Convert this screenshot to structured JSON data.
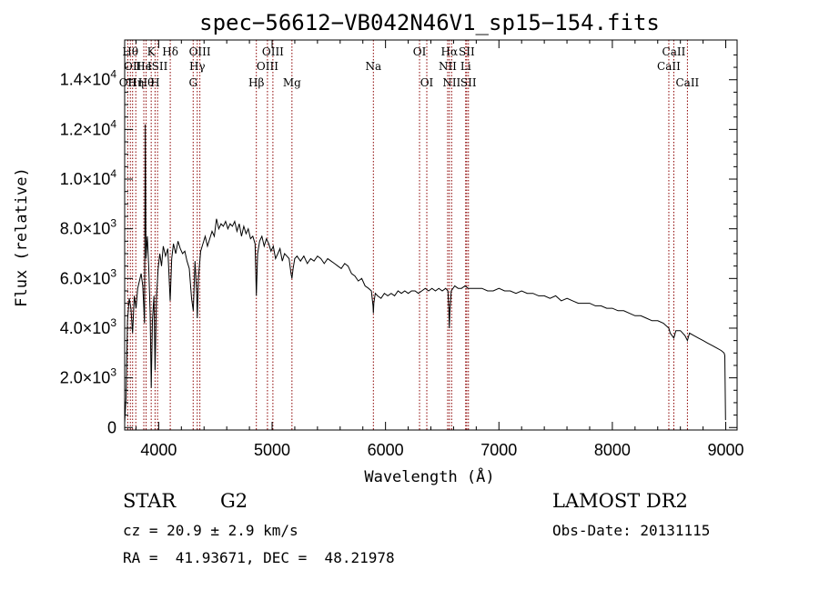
{
  "chart_data": {
    "type": "line",
    "title": "spec−56612−VB042N46V1_sp15−154.fits",
    "xlabel": "Wavelength (Å)",
    "ylabel": "Flux (relative)",
    "xlim": [
      3700,
      9100
    ],
    "ylim": [
      -100,
      15600
    ],
    "x_ticks": [
      4000,
      5000,
      6000,
      7000,
      8000,
      9000
    ],
    "y_ticks": [
      {
        "value": 0,
        "mant": "0",
        "exp": ""
      },
      {
        "value": 2000,
        "mant": "2.0×10",
        "exp": "3"
      },
      {
        "value": 4000,
        "mant": "4.0×10",
        "exp": "3"
      },
      {
        "value": 6000,
        "mant": "6.0×10",
        "exp": "3"
      },
      {
        "value": 8000,
        "mant": "8.0×10",
        "exp": "3"
      },
      {
        "value": 10000,
        "mant": "1.0×10",
        "exp": "4"
      },
      {
        "value": 12000,
        "mant": "1.2×10",
        "exp": "4"
      },
      {
        "value": 14000,
        "mant": "1.4×10",
        "exp": "4"
      }
    ],
    "line_color": "#000000",
    "marker_color": "#8b0000",
    "series": [
      {
        "points": [
          [
            3700,
            200
          ],
          [
            3712,
            1200
          ],
          [
            3725,
            4300
          ],
          [
            3740,
            5200
          ],
          [
            3755,
            4800
          ],
          [
            3770,
            3800
          ],
          [
            3785,
            5300
          ],
          [
            3800,
            4800
          ],
          [
            3815,
            5600
          ],
          [
            3830,
            5900
          ],
          [
            3845,
            6200
          ],
          [
            3860,
            5700
          ],
          [
            3875,
            4200
          ],
          [
            3882,
            12200
          ],
          [
            3888,
            6800
          ],
          [
            3900,
            7700
          ],
          [
            3912,
            6500
          ],
          [
            3925,
            4600
          ],
          [
            3934,
            1600
          ],
          [
            3945,
            4300
          ],
          [
            3958,
            5300
          ],
          [
            3968,
            2300
          ],
          [
            3980,
            5200
          ],
          [
            3995,
            6400
          ],
          [
            4010,
            7000
          ],
          [
            4025,
            6500
          ],
          [
            4040,
            7300
          ],
          [
            4060,
            6900
          ],
          [
            4080,
            7200
          ],
          [
            4101,
            5100
          ],
          [
            4115,
            6800
          ],
          [
            4130,
            7400
          ],
          [
            4150,
            7000
          ],
          [
            4170,
            7500
          ],
          [
            4190,
            7200
          ],
          [
            4210,
            7000
          ],
          [
            4230,
            7100
          ],
          [
            4250,
            6700
          ],
          [
            4270,
            6400
          ],
          [
            4290,
            5200
          ],
          [
            4305,
            4700
          ],
          [
            4320,
            6700
          ],
          [
            4335,
            5400
          ],
          [
            4340,
            4400
          ],
          [
            4350,
            6000
          ],
          [
            4370,
            7100
          ],
          [
            4390,
            7400
          ],
          [
            4410,
            7700
          ],
          [
            4430,
            7300
          ],
          [
            4450,
            7600
          ],
          [
            4470,
            7900
          ],
          [
            4490,
            7700
          ],
          [
            4510,
            8400
          ],
          [
            4530,
            8000
          ],
          [
            4550,
            8200
          ],
          [
            4570,
            8100
          ],
          [
            4590,
            8300
          ],
          [
            4610,
            8000
          ],
          [
            4630,
            8200
          ],
          [
            4650,
            8100
          ],
          [
            4670,
            8300
          ],
          [
            4690,
            7900
          ],
          [
            4710,
            8200
          ],
          [
            4730,
            7700
          ],
          [
            4750,
            8100
          ],
          [
            4770,
            7800
          ],
          [
            4790,
            8000
          ],
          [
            4810,
            7600
          ],
          [
            4830,
            7700
          ],
          [
            4850,
            7400
          ],
          [
            4861,
            5300
          ],
          [
            4872,
            7000
          ],
          [
            4890,
            7500
          ],
          [
            4910,
            7700
          ],
          [
            4930,
            7300
          ],
          [
            4950,
            7600
          ],
          [
            4970,
            7400
          ],
          [
            4990,
            7100
          ],
          [
            5010,
            7300
          ],
          [
            5030,
            6800
          ],
          [
            5050,
            7000
          ],
          [
            5070,
            7200
          ],
          [
            5090,
            6700
          ],
          [
            5110,
            7000
          ],
          [
            5130,
            6900
          ],
          [
            5150,
            6800
          ],
          [
            5167,
            6200
          ],
          [
            5175,
            6000
          ],
          [
            5185,
            6400
          ],
          [
            5200,
            6800
          ],
          [
            5220,
            6900
          ],
          [
            5250,
            6700
          ],
          [
            5280,
            6900
          ],
          [
            5310,
            6600
          ],
          [
            5340,
            6800
          ],
          [
            5370,
            6700
          ],
          [
            5400,
            6900
          ],
          [
            5430,
            6800
          ],
          [
            5460,
            6600
          ],
          [
            5490,
            6800
          ],
          [
            5520,
            6700
          ],
          [
            5550,
            6600
          ],
          [
            5580,
            6500
          ],
          [
            5610,
            6400
          ],
          [
            5640,
            6600
          ],
          [
            5670,
            6500
          ],
          [
            5700,
            6200
          ],
          [
            5730,
            6100
          ],
          [
            5760,
            5900
          ],
          [
            5790,
            6000
          ],
          [
            5820,
            5700
          ],
          [
            5850,
            5600
          ],
          [
            5875,
            5500
          ],
          [
            5890,
            4900
          ],
          [
            5893,
            4600
          ],
          [
            5897,
            5000
          ],
          [
            5910,
            5400
          ],
          [
            5930,
            5300
          ],
          [
            5960,
            5200
          ],
          [
            5990,
            5400
          ],
          [
            6020,
            5300
          ],
          [
            6050,
            5400
          ],
          [
            6080,
            5300
          ],
          [
            6110,
            5500
          ],
          [
            6140,
            5400
          ],
          [
            6170,
            5500
          ],
          [
            6200,
            5400
          ],
          [
            6230,
            5500
          ],
          [
            6260,
            5500
          ],
          [
            6290,
            5400
          ],
          [
            6320,
            5500
          ],
          [
            6350,
            5600
          ],
          [
            6380,
            5500
          ],
          [
            6410,
            5600
          ],
          [
            6440,
            5500
          ],
          [
            6470,
            5600
          ],
          [
            6500,
            5500
          ],
          [
            6530,
            5600
          ],
          [
            6550,
            5500
          ],
          [
            6558,
            4800
          ],
          [
            6563,
            4000
          ],
          [
            6568,
            4700
          ],
          [
            6580,
            5500
          ],
          [
            6610,
            5700
          ],
          [
            6640,
            5600
          ],
          [
            6670,
            5600
          ],
          [
            6700,
            5700
          ],
          [
            6730,
            5600
          ],
          [
            6760,
            5600
          ],
          [
            6800,
            5600
          ],
          [
            6850,
            5600
          ],
          [
            6900,
            5500
          ],
          [
            6950,
            5500
          ],
          [
            7000,
            5600
          ],
          [
            7050,
            5500
          ],
          [
            7100,
            5500
          ],
          [
            7150,
            5400
          ],
          [
            7200,
            5500
          ],
          [
            7250,
            5400
          ],
          [
            7300,
            5400
          ],
          [
            7350,
            5300
          ],
          [
            7400,
            5300
          ],
          [
            7450,
            5200
          ],
          [
            7500,
            5300
          ],
          [
            7550,
            5100
          ],
          [
            7600,
            5200
          ],
          [
            7650,
            5100
          ],
          [
            7700,
            5000
          ],
          [
            7750,
            5000
          ],
          [
            7800,
            5000
          ],
          [
            7850,
            4900
          ],
          [
            7900,
            4900
          ],
          [
            7950,
            4800
          ],
          [
            8000,
            4800
          ],
          [
            8050,
            4700
          ],
          [
            8100,
            4700
          ],
          [
            8150,
            4600
          ],
          [
            8200,
            4500
          ],
          [
            8250,
            4500
          ],
          [
            8300,
            4400
          ],
          [
            8350,
            4300
          ],
          [
            8400,
            4300
          ],
          [
            8450,
            4200
          ],
          [
            8498,
            4000
          ],
          [
            8510,
            3800
          ],
          [
            8542,
            3600
          ],
          [
            8560,
            3900
          ],
          [
            8600,
            3900
          ],
          [
            8640,
            3700
          ],
          [
            8662,
            3500
          ],
          [
            8680,
            3800
          ],
          [
            8720,
            3700
          ],
          [
            8760,
            3600
          ],
          [
            8800,
            3500
          ],
          [
            8840,
            3400
          ],
          [
            8880,
            3300
          ],
          [
            8920,
            3200
          ],
          [
            8960,
            3100
          ],
          [
            8985,
            3000
          ],
          [
            8992,
            2900
          ],
          [
            8998,
            300
          ]
        ]
      }
    ],
    "lines": [
      {
        "wave": 3727,
        "label": "OII",
        "row": 3
      },
      {
        "wave": 3750,
        "label": "Hθ",
        "row": 1
      },
      {
        "wave": 3770,
        "label": "OII",
        "row": 2
      },
      {
        "wave": 3798,
        "label": "Hη",
        "row": 3
      },
      {
        "wave": 3869,
        "label": "He",
        "row": 2
      },
      {
        "wave": 3889,
        "label": "Hθ",
        "row": 3
      },
      {
        "wave": 3934,
        "label": "K",
        "row": 1
      },
      {
        "wave": 3968,
        "label": "H",
        "row": 3
      },
      {
        "wave": 3990,
        "label": "ISII",
        "row": 2
      },
      {
        "wave": 4102,
        "label": "Hδ",
        "row": 1
      },
      {
        "wave": 4304,
        "label": "G",
        "row": 3
      },
      {
        "wave": 4340,
        "label": "Hγ",
        "row": 2
      },
      {
        "wave": 4363,
        "label": "OIII",
        "row": 1
      },
      {
        "wave": 4861,
        "label": "Hβ",
        "row": 3
      },
      {
        "wave": 4959,
        "label": "OIII",
        "row": 2
      },
      {
        "wave": 5007,
        "label": "OIII",
        "row": 1
      },
      {
        "wave": 5175,
        "label": "Mg",
        "row": 3
      },
      {
        "wave": 5893,
        "label": "Na",
        "row": 2
      },
      {
        "wave": 6300,
        "label": "OI",
        "row": 1
      },
      {
        "wave": 6364,
        "label": "OI",
        "row": 3
      },
      {
        "wave": 6548,
        "label": "NII",
        "row": 2
      },
      {
        "wave": 6563,
        "label": "Hα",
        "row": 1
      },
      {
        "wave": 6583,
        "label": "NII",
        "row": 3
      },
      {
        "wave": 6707,
        "label": "Li",
        "row": 2
      },
      {
        "wave": 6716,
        "label": "SII",
        "row": 1
      },
      {
        "wave": 6731,
        "label": "SII",
        "row": 3
      },
      {
        "wave": 8498,
        "label": "CaII",
        "row": 2
      },
      {
        "wave": 8542,
        "label": "CaII",
        "row": 1
      },
      {
        "wave": 8662,
        "label": "CaII",
        "row": 3
      }
    ]
  },
  "info": {
    "object_class": "STAR",
    "subclass": "G2",
    "survey": "LAMOST DR2",
    "cz": "cz = 20.9 ± 2.9 km/s",
    "obs_date": "Obs-Date: 20131115",
    "coords": "RA =  41.93671, DEC =  48.21978"
  }
}
